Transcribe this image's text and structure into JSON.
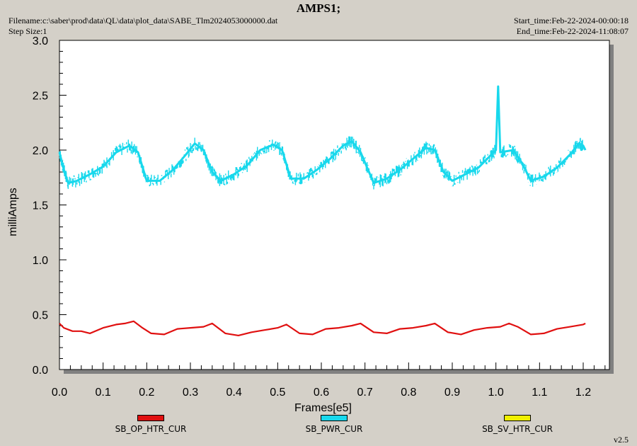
{
  "header": {
    "title": "AMPS1;",
    "filename": "Filename:c:\\saber\\prod\\data\\QL\\data\\plot_data\\SABE_Tlm2024053000000.dat",
    "step_size": "Step Size:1",
    "start_time": "Start_time:Feb-22-2024-00:00:18",
    "end_time": "End_time:Feb-22-2024-11:08:07",
    "version": "v2.5"
  },
  "chart_data": {
    "type": "line",
    "title": "AMPS1;",
    "xlabel": "Frames[e5]",
    "ylabel": "milliAmps",
    "xlim": [
      0.0,
      1.26
    ],
    "ylim": [
      0.0,
      3.0
    ],
    "x_ticks": [
      "0.0",
      "0.1",
      "0.2",
      "0.3",
      "0.4",
      "0.5",
      "0.6",
      "0.7",
      "0.8",
      "0.9",
      "1.0",
      "1.1",
      "1.2"
    ],
    "y_ticks": [
      "0.0",
      "0.5",
      "1.0",
      "1.5",
      "2.0",
      "2.5",
      "3.0"
    ],
    "grid": false,
    "legend_position": "bottom",
    "series": [
      {
        "name": "SB_OP_HTR_CUR",
        "color": "#e01010",
        "x": [
          0.0,
          0.01,
          0.03,
          0.05,
          0.07,
          0.1,
          0.13,
          0.15,
          0.17,
          0.19,
          0.21,
          0.24,
          0.27,
          0.3,
          0.33,
          0.35,
          0.38,
          0.41,
          0.44,
          0.47,
          0.5,
          0.52,
          0.55,
          0.58,
          0.61,
          0.64,
          0.67,
          0.69,
          0.72,
          0.75,
          0.78,
          0.81,
          0.84,
          0.86,
          0.89,
          0.92,
          0.95,
          0.98,
          1.01,
          1.03,
          1.05,
          1.08,
          1.11,
          1.14,
          1.17,
          1.2,
          1.205
        ],
        "y": [
          0.42,
          0.38,
          0.35,
          0.35,
          0.33,
          0.38,
          0.41,
          0.42,
          0.44,
          0.38,
          0.33,
          0.32,
          0.37,
          0.38,
          0.39,
          0.42,
          0.33,
          0.31,
          0.34,
          0.36,
          0.38,
          0.41,
          0.33,
          0.32,
          0.37,
          0.38,
          0.4,
          0.42,
          0.34,
          0.33,
          0.37,
          0.38,
          0.4,
          0.42,
          0.34,
          0.32,
          0.36,
          0.38,
          0.39,
          0.42,
          0.39,
          0.32,
          0.33,
          0.37,
          0.39,
          0.41,
          0.42
        ]
      },
      {
        "name": "SB_PWR_CUR",
        "color": "#18d8ec",
        "x": [
          0.0,
          0.01,
          0.02,
          0.04,
          0.07,
          0.1,
          0.13,
          0.16,
          0.18,
          0.2,
          0.23,
          0.26,
          0.29,
          0.31,
          0.33,
          0.35,
          0.37,
          0.4,
          0.43,
          0.46,
          0.49,
          0.51,
          0.53,
          0.56,
          0.59,
          0.62,
          0.65,
          0.67,
          0.69,
          0.72,
          0.75,
          0.78,
          0.81,
          0.84,
          0.86,
          0.88,
          0.9,
          0.93,
          0.96,
          0.99,
          1.0,
          1.005,
          1.01,
          1.04,
          1.06,
          1.08,
          1.11,
          1.14,
          1.17,
          1.19,
          1.2,
          1.205
        ],
        "y": [
          1.98,
          1.82,
          1.7,
          1.72,
          1.78,
          1.85,
          1.98,
          2.04,
          1.98,
          1.72,
          1.72,
          1.82,
          1.96,
          2.06,
          2.0,
          1.8,
          1.72,
          1.78,
          1.86,
          2.0,
          2.05,
          2.0,
          1.74,
          1.74,
          1.82,
          1.92,
          2.04,
          2.08,
          1.98,
          1.7,
          1.74,
          1.82,
          1.92,
          2.02,
          2.0,
          1.8,
          1.72,
          1.78,
          1.84,
          1.96,
          2.0,
          2.58,
          1.98,
          2.0,
          1.88,
          1.72,
          1.76,
          1.84,
          1.96,
          2.06,
          2.04,
          2.0
        ]
      },
      {
        "name": "SB_SV_HTR_CUR",
        "color": "#f0f000",
        "x": [],
        "y": []
      }
    ]
  }
}
